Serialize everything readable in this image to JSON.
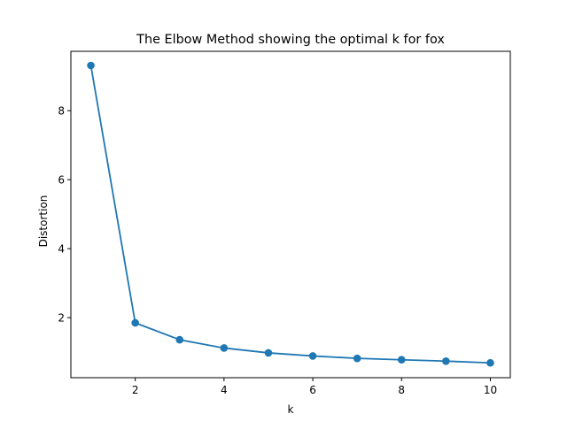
{
  "chart_data": {
    "type": "line",
    "title": "The Elbow Method showing the optimal k for fox",
    "xlabel": "k",
    "ylabel": "Distortion",
    "xlim": [
      0.55,
      10.45
    ],
    "ylim": [
      0.26,
      9.72
    ],
    "xticks": [
      2,
      4,
      6,
      8,
      10
    ],
    "yticks": [
      2,
      4,
      6,
      8
    ],
    "grid": false,
    "legend": "none",
    "series": [
      {
        "color": "#1f77b4",
        "marker": "circle",
        "x": [
          1,
          2,
          3,
          4,
          5,
          6,
          7,
          8,
          9,
          10
        ],
        "values": [
          9.31,
          1.85,
          1.36,
          1.12,
          0.98,
          0.89,
          0.82,
          0.78,
          0.74,
          0.69
        ]
      }
    ]
  }
}
